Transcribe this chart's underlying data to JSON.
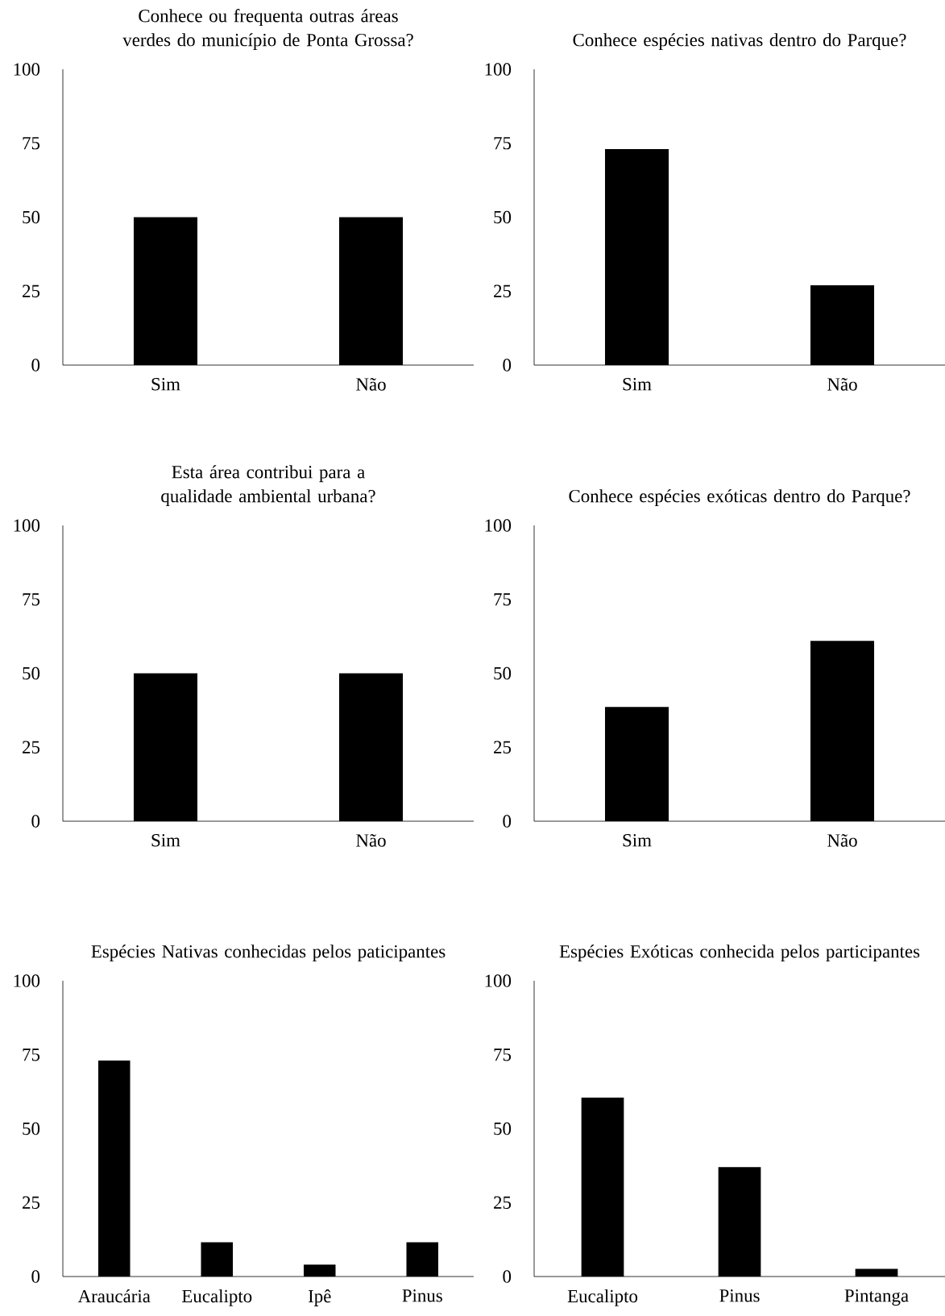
{
  "chart_data": [
    {
      "type": "bar",
      "title": "Conhece ou frequenta outras áreas verdes do município de Ponta Grossa?",
      "categories": [
        "Sim",
        "Não"
      ],
      "values": [
        50,
        50
      ],
      "color": "#000000",
      "ylim": [
        0,
        100
      ],
      "yticks": [
        0,
        25,
        50,
        75,
        100
      ]
    },
    {
      "type": "bar",
      "title": "Conhece espécies nativas dentro do Parque?",
      "categories": [
        "Sim",
        "Não"
      ],
      "values": [
        73,
        27
      ],
      "color": "#000000",
      "ylim": [
        0,
        100
      ],
      "yticks": [
        0,
        25,
        50,
        75,
        100
      ]
    },
    {
      "type": "bar",
      "title": "Esta área contribui para a qualidade ambiental urbana?",
      "categories": [
        "Sim",
        "Não"
      ],
      "values": [
        50,
        50
      ],
      "color": "#000000",
      "ylim": [
        0,
        100
      ],
      "yticks": [
        0,
        25,
        50,
        75,
        100
      ]
    },
    {
      "type": "bar",
      "title": "Conhece espécies exóticas dentro do Parque?",
      "categories": [
        "Sim",
        "Não"
      ],
      "values": [
        38.6,
        61
      ],
      "color": "#000000",
      "ylim": [
        0,
        100
      ],
      "yticks": [
        0,
        25,
        50,
        75,
        100
      ]
    },
    {
      "type": "bar",
      "title": "Espécies Nativas conhecidas pelos paticipantes",
      "categories": [
        "Araucária",
        "Eucalipto",
        "Ipê",
        "Pinus"
      ],
      "values": [
        73,
        11.6,
        4,
        11.6
      ],
      "color": "#000000",
      "ylim": [
        0,
        100
      ],
      "yticks": [
        0,
        25,
        50,
        75,
        100
      ]
    },
    {
      "type": "bar",
      "title": "Espécies Exóticas conhecida pelos participantes",
      "categories": [
        "Eucalipto",
        "Pinus",
        "Pintanga"
      ],
      "values": [
        60.5,
        37,
        2.6
      ],
      "color": "#000000",
      "ylim": [
        0,
        100
      ],
      "yticks": [
        0,
        25,
        50,
        75,
        100
      ]
    }
  ]
}
